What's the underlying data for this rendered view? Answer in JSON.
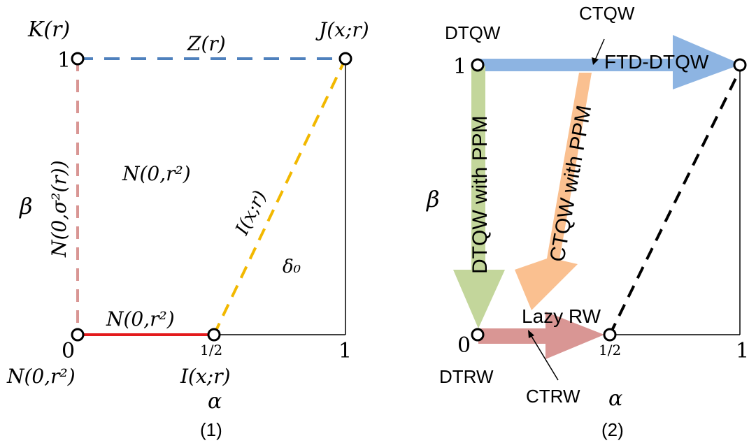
{
  "panel1": {
    "k_label": "K(r)",
    "j_label": "J(x;r)",
    "z_label": "Z(r)",
    "one_y": "1",
    "beta": "β",
    "normal_left": "N(0,σ²(r))",
    "normal_center": "N(0,r²)",
    "i_diag": "I(x;r)",
    "delta0": "δ₀",
    "normal_bottom": "N(0,r²)",
    "zero": "0",
    "half": "1/2",
    "one_x": "1",
    "normal_origin": "N(0,r²)",
    "i_bottom": "I(x;r)",
    "alpha": "α",
    "caption": "(1)",
    "colors": {
      "top_edge": "#4f81bd",
      "left_edge": "#d99694",
      "bottom_edge": "#e31a1c",
      "diag_edge": "#f2b800",
      "frame": "#000000"
    }
  },
  "panel2": {
    "dtqw_top": "DTQW",
    "ctqw_top": "CTQW",
    "ftd_dtqw": "FTD-DTQW",
    "one_y": "1",
    "beta": "β",
    "dtqw_ppm": "DTQW with PPM",
    "ctqw_ppm": "CTQW with PPM",
    "lazy_rw": "Lazy RW",
    "zero": "0",
    "half": "1/2",
    "one_x": "1",
    "dtrw": "DTRW",
    "ctrw": "CTRW",
    "alpha": "α",
    "caption": "(2)",
    "colors": {
      "blue_arrow": "#8db4e2",
      "green_arrow": "#c3d69b",
      "orange_arrow": "#fac090",
      "red_arrow": "#d99694",
      "diag_edge": "#000000"
    }
  }
}
